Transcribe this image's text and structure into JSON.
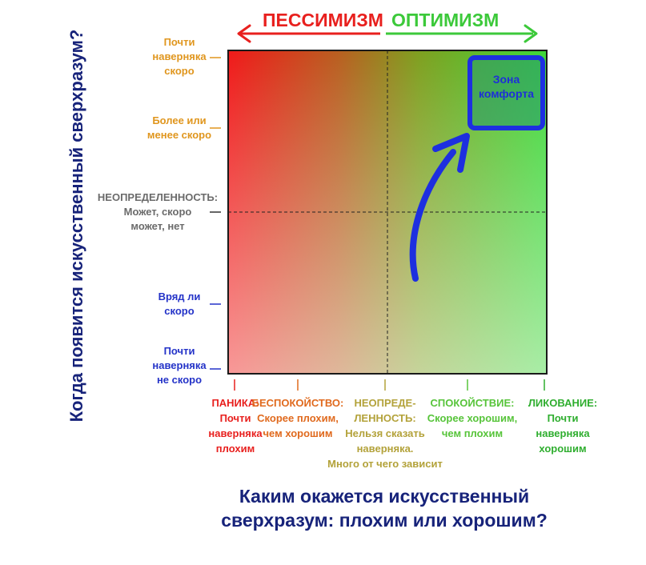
{
  "header": {
    "pessimism": "ПЕССИМИЗМ",
    "optimism": "ОПТИМИЗМ"
  },
  "colors": {
    "pessimism": "#e8201e",
    "optimism": "#3cc93a",
    "title_navy": "#17237a",
    "arrow_blue": "#1d2fe0",
    "orange": "#e0961e",
    "gray": "#6b6b6b",
    "blue": "#2433c8"
  },
  "y_axis": {
    "title": "Когда появится искусственный сверхразум?",
    "levels": [
      {
        "text": "Почти\nнаверняка\nскоро",
        "color": "#e0961e"
      },
      {
        "text": "Более или\nменее скоро",
        "color": "#e0961e"
      },
      {
        "text_head": "НЕОПРЕДЕЛЕННОСТЬ:",
        "text_body": "Может, скоро\nможет, нет",
        "color": "#6b6b6b"
      },
      {
        "text": "Вряд ли\nскоро",
        "color": "#2433c8"
      },
      {
        "text": "Почти\nнаверняка\nне скоро",
        "color": "#2433c8"
      }
    ]
  },
  "x_axis": {
    "title": "Каким окажется искусственный\nсверхразум: плохим или хорошим?",
    "levels": [
      {
        "head": "ПАНИКА:",
        "body": "Почти\nнаверняка\nплохим",
        "color": "#e8201e"
      },
      {
        "head": "БЕСПОКОЙСТВО:",
        "body": "Скорее плохим,\nчем хорошим",
        "color": "#e06a1e"
      },
      {
        "head": "НЕОПРЕДЕ-\nЛЕННОСТЬ:",
        "body": "Нельзя сказать\nнаверняка.\nМного от чего зависит",
        "color": "#b3a23a"
      },
      {
        "head": "СПОКОЙСТВИЕ:",
        "body": "Скорее хорошим,\nчем плохим",
        "color": "#57c43a"
      },
      {
        "head": "ЛИКОВАНИЕ:",
        "body": "Почти\nнаверняка\nхорошим",
        "color": "#2fae2f"
      }
    ]
  },
  "comfort_zone": {
    "label": "Зона\nкомфорта"
  }
}
